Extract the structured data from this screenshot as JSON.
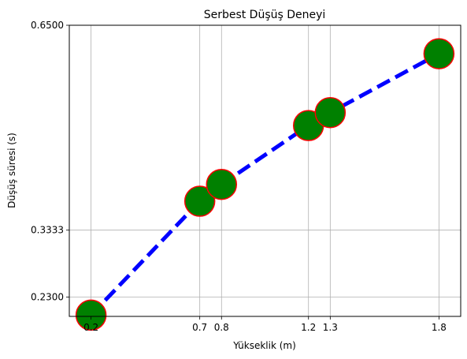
{
  "chart_data": {
    "type": "line",
    "title": "Serbest Düşüş Deneyi",
    "xlabel": "Yükseklik (m)",
    "ylabel": "Düşüş süresi (s)",
    "xlim": [
      0.1,
      1.9
    ],
    "ylim": [
      0.2,
      0.65
    ],
    "xticks": [
      0.2,
      0.7,
      0.8,
      1.2,
      1.3,
      1.8
    ],
    "xtick_labels": [
      "0.2",
      "0.7",
      "0.8",
      "1.2",
      "1.3",
      "1.8"
    ],
    "yticks": [
      0.23,
      0.3333,
      0.65
    ],
    "ytick_labels": [
      "0.2300",
      "0.3333",
      "0.6500"
    ],
    "grid": true,
    "series": [
      {
        "x": [
          0.2,
          0.7,
          0.8,
          1.2,
          1.3,
          1.8
        ],
        "y": [
          0.202,
          0.378,
          0.404,
          0.495,
          0.515,
          0.606
        ],
        "line_color": "#0000ff",
        "line_style": "dashed",
        "marker_face_color": "#008000",
        "marker_edge_color": "#ff0000"
      }
    ]
  }
}
